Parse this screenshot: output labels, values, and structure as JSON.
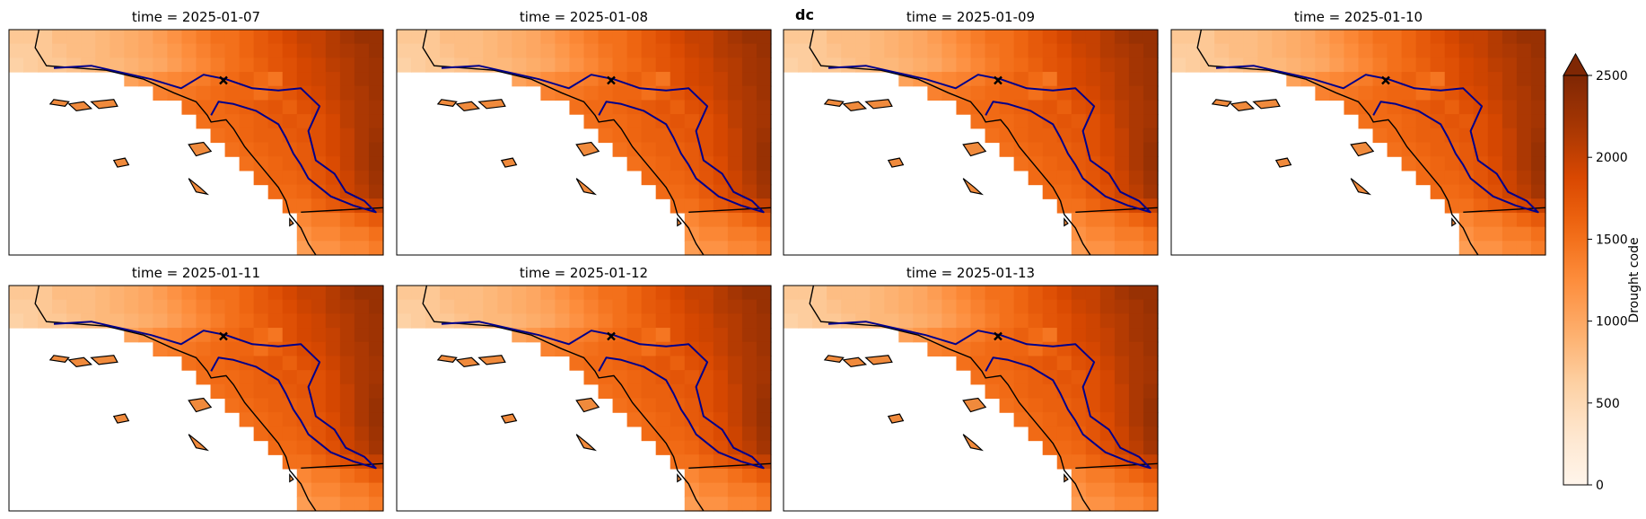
{
  "figure": {
    "suptitle": "dc"
  },
  "chart_data": {
    "type": "heatmap",
    "variable": "dc",
    "panels": [
      {
        "title": "time = 2025-01-07",
        "time": "2025-01-07"
      },
      {
        "title": "time = 2025-01-08",
        "time": "2025-01-08"
      },
      {
        "title": "time = 2025-01-09",
        "time": "2025-01-09"
      },
      {
        "title": "time = 2025-01-10",
        "time": "2025-01-10"
      },
      {
        "title": "time = 2025-01-11",
        "time": "2025-01-11"
      },
      {
        "title": "time = 2025-01-12",
        "time": "2025-01-12"
      },
      {
        "title": "time = 2025-01-13",
        "time": "2025-01-13"
      }
    ],
    "grid": {
      "rows": 16,
      "cols": 26,
      "values": [
        [
          700,
          700,
          700,
          800,
          800,
          800,
          850,
          900,
          950,
          1000,
          1100,
          1200,
          1300,
          1400,
          1500,
          1500,
          1600,
          1700,
          1800,
          1900,
          2000,
          2000,
          2100,
          2200,
          2300,
          2300
        ],
        [
          650,
          650,
          700,
          750,
          800,
          800,
          850,
          900,
          950,
          1000,
          1050,
          1150,
          1250,
          1350,
          1450,
          1500,
          1600,
          1700,
          1750,
          1850,
          1950,
          2000,
          2100,
          2150,
          2200,
          2300
        ],
        [
          600,
          650,
          700,
          700,
          750,
          800,
          850,
          850,
          900,
          950,
          1000,
          1100,
          1200,
          1300,
          1400,
          1500,
          1550,
          1650,
          1750,
          1800,
          1900,
          1950,
          2050,
          2100,
          2200,
          2250
        ],
        [
          null,
          null,
          null,
          null,
          null,
          null,
          null,
          null,
          1050,
          1150,
          1250,
          1300,
          1350,
          1400,
          1500,
          1550,
          1650,
          1550,
          1450,
          1800,
          1900,
          1950,
          2000,
          2100,
          2200,
          2250
        ],
        [
          null,
          null,
          null,
          null,
          null,
          null,
          null,
          null,
          null,
          null,
          1350,
          1400,
          1450,
          1500,
          1550,
          1600,
          1600,
          1500,
          1650,
          1750,
          1850,
          1900,
          2000,
          2100,
          2150,
          2250
        ],
        [
          null,
          null,
          null,
          null,
          null,
          null,
          null,
          null,
          null,
          null,
          null,
          null,
          1500,
          1550,
          1550,
          1600,
          1650,
          1700,
          1750,
          1650,
          1800,
          1850,
          1950,
          2050,
          2150,
          2200
        ],
        [
          null,
          null,
          null,
          null,
          null,
          null,
          null,
          null,
          null,
          null,
          null,
          null,
          null,
          1500,
          1550,
          1550,
          1600,
          1650,
          1700,
          1750,
          1700,
          1800,
          1900,
          2050,
          2150,
          2200
        ],
        [
          null,
          null,
          null,
          null,
          null,
          null,
          null,
          null,
          null,
          null,
          null,
          null,
          null,
          null,
          1500,
          1550,
          1600,
          1650,
          1650,
          1700,
          1750,
          1800,
          1900,
          2000,
          2150,
          2250
        ],
        [
          null,
          null,
          null,
          null,
          null,
          null,
          null,
          null,
          null,
          null,
          null,
          null,
          null,
          null,
          null,
          1500,
          1550,
          1600,
          1650,
          1650,
          1700,
          1800,
          1900,
          2000,
          2150,
          2300
        ],
        [
          null,
          null,
          null,
          null,
          null,
          null,
          null,
          null,
          null,
          null,
          null,
          null,
          null,
          null,
          null,
          null,
          1500,
          1550,
          1600,
          1650,
          1700,
          1750,
          1850,
          2000,
          2150,
          2300
        ],
        [
          null,
          null,
          null,
          null,
          null,
          null,
          null,
          null,
          null,
          null,
          null,
          null,
          null,
          null,
          null,
          null,
          null,
          1550,
          1600,
          1600,
          1650,
          1750,
          1850,
          1950,
          2100,
          2250
        ],
        [
          null,
          null,
          null,
          null,
          null,
          null,
          null,
          null,
          null,
          null,
          null,
          null,
          null,
          null,
          null,
          null,
          null,
          null,
          1550,
          1550,
          1600,
          1700,
          1800,
          1950,
          2050,
          2200
        ],
        [
          null,
          null,
          null,
          null,
          null,
          null,
          null,
          null,
          null,
          null,
          null,
          null,
          null,
          null,
          null,
          null,
          null,
          null,
          null,
          1500,
          1500,
          1600,
          1700,
          1800,
          1900,
          2000
        ],
        [
          null,
          null,
          null,
          null,
          null,
          null,
          null,
          null,
          null,
          null,
          null,
          null,
          null,
          null,
          null,
          null,
          null,
          null,
          null,
          null,
          1300,
          1400,
          1400,
          1500,
          1600,
          1700
        ],
        [
          null,
          null,
          null,
          null,
          null,
          null,
          null,
          null,
          null,
          null,
          null,
          null,
          null,
          null,
          null,
          null,
          null,
          null,
          null,
          null,
          1200,
          1300,
          1300,
          1400,
          1400,
          1500
        ],
        [
          null,
          null,
          null,
          null,
          null,
          null,
          null,
          null,
          null,
          null,
          null,
          null,
          null,
          null,
          null,
          null,
          null,
          null,
          null,
          null,
          1100,
          1200,
          1200,
          1300,
          1300,
          1400
        ]
      ]
    },
    "markers": [
      {
        "label": "x",
        "cell": [
          3.1,
          14.4
        ]
      }
    ],
    "colorbar": {
      "label": "Drought code",
      "cmap": "Oranges",
      "vmin": 0,
      "vmax": 2500,
      "extend": "max",
      "ticks": [
        "0",
        "500",
        "1000",
        "1500",
        "2000",
        "2500"
      ],
      "tick_values": [
        0,
        500,
        1000,
        1500,
        2000,
        2500
      ]
    },
    "colors": {
      "boundary": "#00008b",
      "coastline": "#000000",
      "ocean": "#ffffff",
      "low": "#fff5eb",
      "high": "#7f2704"
    }
  }
}
